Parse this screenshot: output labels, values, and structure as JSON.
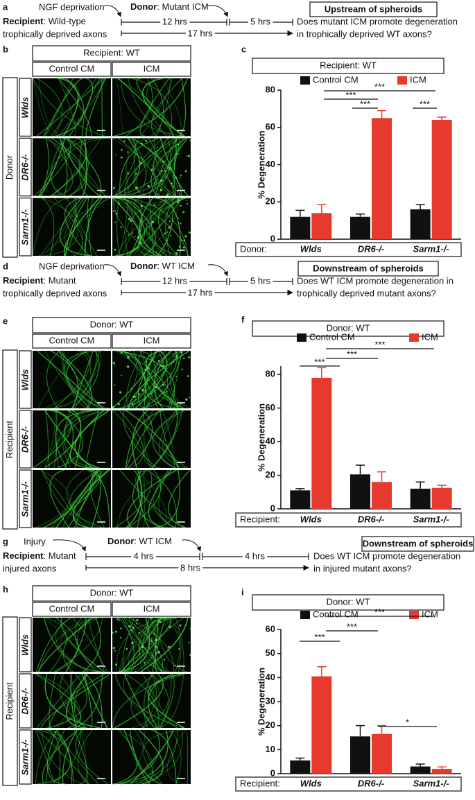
{
  "panels": {
    "a": {
      "letter": "a",
      "step": "NGF deprivation",
      "donor_bold": "Donor",
      "donor_rest": ": Mutant ICM",
      "recipient_bold": "Recipient",
      "recipient_rest": ": Wild-type",
      "recipient_line2": "trophically deprived axons",
      "t1": "12 hrs",
      "t2": "5 hrs",
      "t3": "17 hrs",
      "box": "Upstream of spheroids",
      "question1": "Does mutant ICM promote degeneration",
      "question2": "in trophically deprived WT axons?"
    },
    "b": {
      "letter": "b",
      "header": "Recipient: WT",
      "columns": [
        "Control CM",
        "ICM"
      ],
      "rows": [
        "Wlds",
        "DR6-/-",
        "Sarm1-/-"
      ],
      "side": "Donor"
    },
    "d": {
      "letter": "d",
      "step": "NGF deprivation",
      "donor_bold": "Donor",
      "donor_rest": ": WT ICM",
      "recipient_bold": "Recipient",
      "recipient_rest": ": Mutant",
      "recipient_line2": "trophically deprived axons",
      "t1": "12 hrs",
      "t2": "5 hrs",
      "t3": "17 hrs",
      "box": "Downstream of spheroids",
      "question1": "Does WT ICM promote degeneration in",
      "question2": "trophically deprived mutant axons?"
    },
    "e": {
      "letter": "e",
      "header": "Donor: WT",
      "columns": [
        "Control CM",
        "ICM"
      ],
      "rows": [
        "Wlds",
        "DR6-/-",
        "Sarm1-/-"
      ],
      "side": "Recipient"
    },
    "g": {
      "letter": "g",
      "step": "Injury",
      "donor_bold": "Donor",
      "donor_rest": ": WT ICM",
      "recipient_bold": "Recipient",
      "recipient_rest": ": Mutant",
      "recipient_line2": "injured axons",
      "t1": "4 hrs",
      "t2": "4 hrs",
      "t3": "8 hrs",
      "box": "Downstream of spheroids",
      "question1": "Does WT ICM promote degeneration",
      "question2": "in injured mutant axons?"
    },
    "h": {
      "letter": "h",
      "header": "Donor: WT",
      "columns": [
        "Control CM",
        "ICM"
      ],
      "rows": [
        "Wlds",
        "DR6-/-",
        "Sarm1-/-"
      ],
      "side": "Recipient"
    }
  },
  "chart_data": [
    {
      "type": "bar",
      "letter": "c",
      "title": "Recipient: WT",
      "ylabel": "% Degeneration",
      "axis_label": "Donor:",
      "categories": [
        "Wlds",
        "DR6-/-",
        "Sarm1-/-"
      ],
      "series": [
        {
          "name": "Control CM",
          "color": "#111111",
          "values": [
            12,
            12,
            16
          ],
          "errors": [
            3.5,
            1.5,
            2.5
          ]
        },
        {
          "name": "ICM",
          "color": "#e8392e",
          "values": [
            14,
            65,
            64
          ],
          "errors": [
            4.5,
            4,
            1.5
          ]
        }
      ],
      "ylim": [
        0,
        80
      ],
      "yticks": [
        0,
        20,
        40,
        60,
        80
      ],
      "annotations": [
        "***",
        "***",
        "***",
        "***"
      ]
    },
    {
      "type": "bar",
      "letter": "f",
      "title": "Donor: WT",
      "ylabel": "% Degeneration",
      "axis_label": "Recipient:",
      "categories": [
        "Wlds",
        "DR6-/-",
        "Sarm1-/-"
      ],
      "series": [
        {
          "name": "Control CM",
          "color": "#111111",
          "values": [
            11,
            20.5,
            12
          ],
          "errors": [
            1,
            5.5,
            4
          ]
        },
        {
          "name": "ICM",
          "color": "#e8392e",
          "values": [
            78,
            16,
            12.5
          ],
          "errors": [
            6,
            6,
            1.5
          ]
        }
      ],
      "ylim": [
        0,
        85
      ],
      "yticks": [
        0,
        20,
        40,
        60,
        80
      ],
      "annotations": [
        "***",
        "***",
        "***"
      ]
    },
    {
      "type": "bar",
      "letter": "i",
      "title": "Donor: WT",
      "ylabel": "% Degeneration",
      "axis_label": "Recipient:",
      "categories": [
        "Wlds",
        "DR6-/-",
        "Sarm1-/-"
      ],
      "series": [
        {
          "name": "Control CM",
          "color": "#111111",
          "values": [
            5.5,
            15.5,
            3
          ],
          "errors": [
            1,
            4.5,
            1
          ]
        },
        {
          "name": "ICM",
          "color": "#e8392e",
          "values": [
            40.5,
            16.5,
            2
          ],
          "errors": [
            4,
            3.5,
            0.8
          ]
        }
      ],
      "ylim": [
        0,
        60
      ],
      "yticks": [
        0,
        10,
        20,
        30,
        40,
        50,
        60
      ],
      "annotations": [
        "***",
        "***",
        "***",
        "*"
      ]
    }
  ]
}
